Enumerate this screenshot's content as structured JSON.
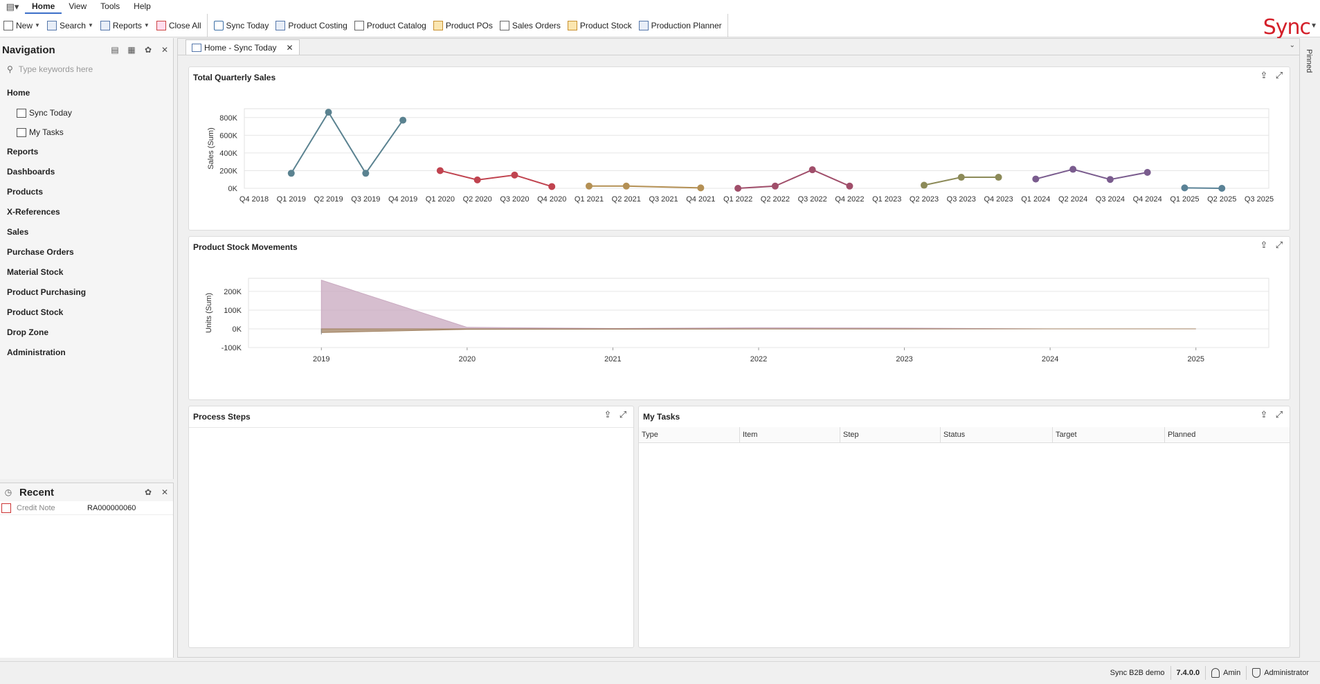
{
  "menubar": {
    "tabs": [
      "Home",
      "View",
      "Tools",
      "Help"
    ],
    "active": "Home"
  },
  "toolbar": {
    "new_label": "New",
    "search_label": "Search",
    "reports_label": "Reports",
    "close_all_label": "Close All",
    "shortcuts": [
      "Sync Today",
      "Product Costing",
      "Product Catalog",
      "Product POs",
      "Sales Orders",
      "Product Stock",
      "Production Planner"
    ],
    "logo": "Sync"
  },
  "navigation": {
    "title": "Navigation",
    "search_placeholder": "Type keywords here",
    "home_label": "Home",
    "home_children": [
      "Sync Today",
      "My Tasks"
    ],
    "items": [
      "Reports",
      "Dashboards",
      "Products",
      "X-References",
      "Sales",
      "Purchase Orders",
      "Material Stock",
      "Product Purchasing",
      "Product Stock",
      "Drop Zone",
      "Administration"
    ]
  },
  "recent": {
    "title": "Recent",
    "rows": [
      {
        "type": "Credit Note",
        "value": "RA000000060"
      }
    ]
  },
  "document_tab": {
    "label": "Home - Sync Today"
  },
  "pinned_label": "Pinned",
  "cards": {
    "sales_title": "Total Quarterly Sales",
    "stock_title": "Product Stock Movements",
    "process_title": "Process Steps",
    "tasks_title": "My Tasks",
    "tasks_columns": [
      "Type",
      "Item",
      "Step",
      "Status",
      "Target",
      "Planned"
    ]
  },
  "statusbar": {
    "company": "Sync B2B demo",
    "version": "7.4.0.0",
    "user": "Amin",
    "role": "Administrator"
  },
  "colors": {
    "accent": "#3b6fc8",
    "logo": "#d4202a",
    "series_2019": "#5a8290",
    "series_2020": "#c0434f",
    "series_2021": "#b49054",
    "series_2022": "#a04e6a",
    "series_2023": "#8c8a58",
    "series_2024": "#7a5c8e",
    "series_2025": "#5a8296",
    "stock_area": "#c8a8bf"
  },
  "chart_data": [
    {
      "type": "line",
      "title": "Total Quarterly Sales",
      "ylabel": "Sales (Sum)",
      "xlabel": "",
      "ylim": [
        0,
        900000
      ],
      "yticks": [
        "0K",
        "200K",
        "400K",
        "600K",
        "800K"
      ],
      "categories": [
        "Q4 2018",
        "Q1 2019",
        "Q2 2019",
        "Q3 2019",
        "Q4 2019",
        "Q1 2020",
        "Q2 2020",
        "Q3 2020",
        "Q4 2020",
        "Q1 2021",
        "Q2 2021",
        "Q3 2021",
        "Q4 2021",
        "Q1 2022",
        "Q2 2022",
        "Q3 2022",
        "Q4 2022",
        "Q1 2023",
        "Q2 2023",
        "Q3 2023",
        "Q4 2023",
        "Q1 2024",
        "Q2 2024",
        "Q3 2024",
        "Q4 2024",
        "Q1 2025",
        "Q2 2025",
        "Q3 2025"
      ],
      "series": [
        {
          "values": [
            [
              1,
              170000
            ],
            [
              2,
              860000
            ],
            [
              3,
              170000
            ],
            [
              4,
              770000
            ]
          ],
          "color": "#5a8290"
        },
        {
          "values": [
            [
              5,
              200000
            ],
            [
              6,
              95000
            ],
            [
              7,
              150000
            ],
            [
              8,
              20000
            ]
          ],
          "color": "#c0434f"
        },
        {
          "values": [
            [
              9,
              25000
            ],
            [
              10,
              25000
            ],
            [
              12,
              5000
            ]
          ],
          "color": "#b49054"
        },
        {
          "values": [
            [
              13,
              0
            ],
            [
              14,
              25000
            ],
            [
              15,
              210000
            ],
            [
              16,
              25000
            ]
          ],
          "color": "#a04e6a"
        },
        {
          "values": [
            [
              18,
              35000
            ],
            [
              19,
              125000
            ],
            [
              20,
              125000
            ]
          ],
          "color": "#8c8a58"
        },
        {
          "values": [
            [
              21,
              105000
            ],
            [
              22,
              215000
            ],
            [
              23,
              100000
            ],
            [
              24,
              180000
            ]
          ],
          "color": "#7a5c8e"
        },
        {
          "values": [
            [
              25,
              5000
            ],
            [
              26,
              0
            ]
          ],
          "color": "#5a8296"
        }
      ],
      "grid": true
    },
    {
      "type": "area",
      "title": "Product Stock Movements",
      "ylabel": "Units (Sum)",
      "xlabel": "",
      "ylim": [
        -100000,
        270000
      ],
      "yticks": [
        "-100K",
        "0K",
        "100K",
        "200K"
      ],
      "x_labels": [
        "2019",
        "2020",
        "2021",
        "2022",
        "2023",
        "2024",
        "2025"
      ],
      "series": [
        {
          "points": [
            [
              2019.0,
              260000
            ],
            [
              2020.0,
              8000
            ],
            [
              2021.0,
              2000
            ],
            [
              2022.0,
              6000
            ],
            [
              2023.0,
              4000
            ],
            [
              2024.0,
              0
            ],
            [
              2025.0,
              0
            ]
          ],
          "color": "#c8a8bf"
        },
        {
          "points": [
            [
              2019.0,
              -20000
            ],
            [
              2020.0,
              -3000
            ],
            [
              2021.0,
              -2000
            ],
            [
              2022.0,
              -1000
            ],
            [
              2023.0,
              -1000
            ],
            [
              2024.0,
              0
            ],
            [
              2025.0,
              0
            ]
          ],
          "color": "#a08060"
        }
      ],
      "grid": true
    }
  ]
}
